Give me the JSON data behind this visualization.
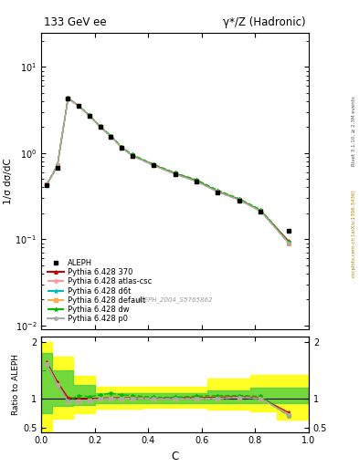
{
  "title_left": "133 GeV ee",
  "title_right": "γ*/Z (Hadronic)",
  "ylabel_main": "1/σ dσ/dC",
  "ylabel_ratio": "Ratio to ALEPH",
  "xlabel": "C",
  "rivet_label": "Rivet 3.1.10, ≥ 2.3M events",
  "arxiv_label": "mcplots.cern.ch [arXiv:1306.3436]",
  "ref_label": "ALEPH_2004_S5765862",
  "data_x": [
    0.02,
    0.06,
    0.1,
    0.14,
    0.18,
    0.22,
    0.26,
    0.3,
    0.34,
    0.42,
    0.5,
    0.58,
    0.66,
    0.74,
    0.82,
    0.925
  ],
  "data_y": [
    0.42,
    0.68,
    4.3,
    3.5,
    2.7,
    2.0,
    1.55,
    1.15,
    0.92,
    0.72,
    0.57,
    0.47,
    0.35,
    0.28,
    0.21,
    0.125
  ],
  "mc_370": [
    0.43,
    0.7,
    4.35,
    3.52,
    2.73,
    2.02,
    1.57,
    1.17,
    0.94,
    0.73,
    0.58,
    0.48,
    0.36,
    0.29,
    0.215,
    0.095
  ],
  "mc_atlas": [
    0.43,
    0.72,
    4.32,
    3.5,
    2.71,
    2.01,
    1.56,
    1.16,
    0.93,
    0.72,
    0.57,
    0.47,
    0.355,
    0.285,
    0.212,
    0.09
  ],
  "mc_d6t": [
    0.43,
    0.72,
    4.32,
    3.5,
    2.71,
    2.01,
    1.56,
    1.16,
    0.93,
    0.72,
    0.57,
    0.47,
    0.355,
    0.285,
    0.212,
    0.09
  ],
  "mc_default": [
    0.43,
    0.72,
    4.32,
    3.5,
    2.71,
    2.01,
    1.56,
    1.16,
    0.93,
    0.72,
    0.57,
    0.47,
    0.355,
    0.285,
    0.212,
    0.09
  ],
  "mc_dw": [
    0.43,
    0.72,
    4.38,
    3.55,
    2.75,
    2.05,
    1.6,
    1.19,
    0.96,
    0.74,
    0.59,
    0.49,
    0.37,
    0.295,
    0.22,
    0.093
  ],
  "mc_p0": [
    0.43,
    0.72,
    4.32,
    3.5,
    2.71,
    2.01,
    1.56,
    1.16,
    0.93,
    0.72,
    0.57,
    0.47,
    0.355,
    0.285,
    0.212,
    0.09
  ],
  "ratio_370": [
    1.65,
    1.3,
    1.02,
    1.01,
    1.01,
    1.01,
    1.02,
    1.02,
    1.02,
    1.01,
    1.02,
    1.02,
    1.03,
    1.04,
    1.02,
    0.76
  ],
  "ratio_atlas": [
    1.62,
    1.25,
    0.95,
    0.96,
    0.97,
    1.0,
    1.0,
    1.0,
    1.01,
    1.0,
    1.0,
    1.0,
    1.01,
    1.02,
    1.01,
    0.72
  ],
  "ratio_d6t": [
    1.62,
    1.25,
    0.95,
    0.96,
    0.97,
    1.0,
    1.0,
    1.0,
    1.01,
    1.0,
    1.0,
    1.0,
    1.01,
    1.02,
    1.01,
    0.72
  ],
  "ratio_default": [
    1.62,
    1.25,
    0.95,
    0.96,
    0.97,
    1.0,
    1.0,
    1.0,
    1.01,
    1.0,
    1.0,
    1.0,
    1.01,
    1.02,
    1.01,
    0.72
  ],
  "ratio_dw": [
    1.62,
    1.25,
    0.97,
    1.06,
    1.04,
    1.07,
    1.1,
    1.07,
    1.06,
    1.03,
    1.03,
    1.05,
    1.06,
    1.06,
    1.05,
    0.7
  ],
  "ratio_p0": [
    1.62,
    1.25,
    0.95,
    0.96,
    0.97,
    1.0,
    1.0,
    1.0,
    1.01,
    1.0,
    1.0,
    1.0,
    1.01,
    1.02,
    1.01,
    0.72
  ],
  "band_edges": [
    0.0,
    0.04,
    0.08,
    0.12,
    0.2,
    0.38,
    0.62,
    0.78,
    0.88,
    1.0
  ],
  "green_lo": [
    0.75,
    0.87,
    0.87,
    0.9,
    0.93,
    0.93,
    0.93,
    0.93,
    0.93,
    0.93
  ],
  "green_hi": [
    1.8,
    1.5,
    1.5,
    1.25,
    1.1,
    1.1,
    1.15,
    1.2,
    1.2,
    1.2
  ],
  "yellow_lo": [
    0.42,
    0.65,
    0.65,
    0.75,
    0.83,
    0.85,
    0.82,
    0.78,
    0.63,
    0.63
  ],
  "yellow_hi": [
    2.0,
    1.75,
    1.75,
    1.4,
    1.22,
    1.22,
    1.35,
    1.42,
    1.42,
    1.42
  ],
  "ylim_main": [
    0.009,
    25
  ],
  "ylim_ratio": [
    0.42,
    2.1
  ],
  "color_370": "#cc0000",
  "color_atlas": "#ff9999",
  "color_d6t": "#00bbbb",
  "color_default": "#ffaa55",
  "color_dw": "#00bb00",
  "color_p0": "#aaaaaa"
}
